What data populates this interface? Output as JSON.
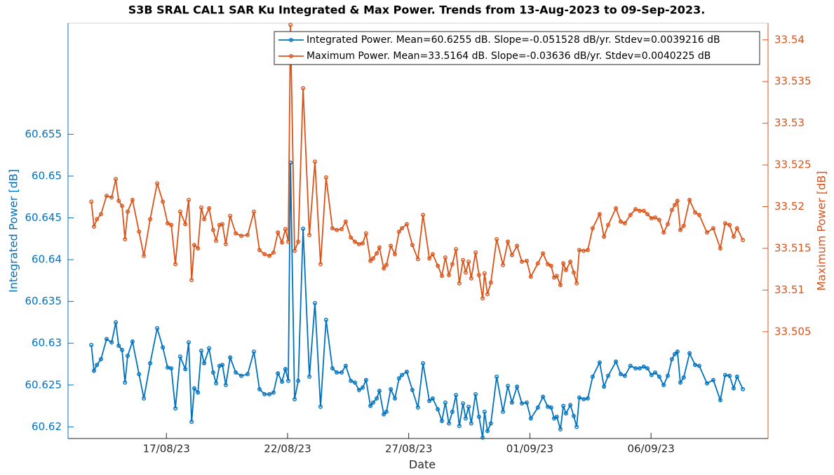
{
  "chart_data": {
    "type": "line",
    "title": "S3B SRAL CAL1 SAR Ku Integrated & Max Power. Trends from 13-Aug-2023 to 09-Sep-2023.",
    "x_label": "Date",
    "y_label": "Integrated Power [dB]",
    "y2_label": "Maximum Power [dB]",
    "xlim": [
      -0.06,
      28.83
    ],
    "xticks": [
      {
        "value": 4,
        "label": "17/08/23"
      },
      {
        "value": 9,
        "label": "22/08/23"
      },
      {
        "value": 14,
        "label": "27/08/23"
      },
      {
        "value": 19,
        "label": "01/09/23"
      },
      {
        "value": 24,
        "label": "06/09/23"
      }
    ],
    "ylim": [
      60.6186,
      60.6683
    ],
    "yticks": [
      60.62,
      60.625,
      60.63,
      60.635,
      60.64,
      60.645,
      60.65,
      60.655
    ],
    "y2lim": [
      33.4922,
      33.542
    ],
    "y2ticks": [
      33.505,
      33.51,
      33.515,
      33.52,
      33.525,
      33.53,
      33.535,
      33.54
    ],
    "legend": "upper right",
    "x": [
      0.9,
      1.01,
      1.13,
      1.3,
      1.53,
      1.74,
      1.91,
      2.03,
      2.17,
      2.29,
      2.4,
      2.6,
      2.87,
      3.07,
      3.33,
      3.62,
      3.85,
      4.05,
      4.2,
      4.37,
      4.57,
      4.78,
      4.92,
      5.04,
      5.15,
      5.3,
      5.44,
      5.56,
      5.76,
      5.93,
      6.05,
      6.19,
      6.31,
      6.45,
      6.63,
      6.86,
      7.09,
      7.35,
      7.61,
      7.84,
      8.05,
      8.25,
      8.42,
      8.6,
      8.77,
      8.91,
      9.03,
      9.12,
      9.29,
      9.44,
      9.64,
      9.9,
      10.13,
      10.36,
      10.59,
      10.85,
      11.03,
      11.23,
      11.4,
      11.61,
      11.78,
      11.95,
      12.1,
      12.24,
      12.42,
      12.53,
      12.68,
      12.79,
      12.97,
      13.08,
      13.26,
      13.43,
      13.6,
      13.72,
      13.92,
      14.15,
      14.38,
      14.59,
      14.85,
      14.99,
      15.2,
      15.37,
      15.51,
      15.66,
      15.8,
      15.95,
      16.09,
      16.24,
      16.35,
      16.47,
      16.58,
      16.76,
      16.9,
      17.05,
      17.13,
      17.25,
      17.39,
      17.63,
      17.89,
      18.09,
      18.26,
      18.47,
      18.67,
      18.87,
      19.04,
      19.33,
      19.54,
      19.74,
      19.88,
      20.0,
      20.11,
      20.26,
      20.38,
      20.49,
      20.67,
      20.81,
      20.93,
      21.04,
      21.22,
      21.39,
      21.59,
      21.88,
      22.06,
      22.23,
      22.55,
      22.75,
      22.92,
      23.15,
      23.36,
      23.53,
      23.7,
      23.85,
      24.02,
      24.17,
      24.34,
      24.52,
      24.69,
      24.86,
      24.98,
      25.09,
      25.21,
      25.35,
      25.59,
      25.82,
      25.99,
      26.31,
      26.57,
      26.86,
      27.06,
      27.24,
      27.41,
      27.55,
      27.79
    ],
    "series": [
      {
        "name": "Integrated Power. Mean=60.6255 dB. Slope=-0.051528 dB/yr. Stdev=0.0039216 dB",
        "color": "#0072bd",
        "axis": "y",
        "values": [
          60.6298,
          60.6267,
          60.6274,
          60.6281,
          60.6305,
          60.6301,
          60.6325,
          60.6297,
          60.6292,
          60.6253,
          60.6285,
          60.6302,
          60.6263,
          60.6234,
          60.6276,
          60.6318,
          60.6295,
          60.6271,
          60.627,
          60.6222,
          60.6284,
          60.6269,
          60.6301,
          60.6206,
          60.6246,
          60.6241,
          60.6291,
          60.6276,
          60.6294,
          60.6265,
          60.6252,
          60.6273,
          60.6274,
          60.625,
          60.6283,
          60.6265,
          60.6261,
          60.6263,
          60.629,
          60.6245,
          60.6239,
          60.6239,
          60.6241,
          60.6264,
          60.6254,
          60.6269,
          60.6255,
          60.6516,
          60.6233,
          60.6255,
          60.6437,
          60.626,
          60.6348,
          60.6224,
          60.6328,
          60.627,
          60.6265,
          60.6265,
          60.6273,
          60.6255,
          60.6253,
          60.6244,
          60.6247,
          60.6256,
          60.6225,
          60.6229,
          60.6234,
          60.6243,
          60.6215,
          60.6218,
          60.6245,
          60.6234,
          60.6258,
          60.6262,
          60.6266,
          60.6244,
          60.6223,
          60.6276,
          60.6231,
          60.6234,
          60.6221,
          60.6207,
          60.6229,
          60.6204,
          60.6218,
          60.6238,
          60.6201,
          60.6228,
          60.621,
          60.6224,
          60.6204,
          60.6239,
          60.6212,
          60.6187,
          60.6218,
          60.6195,
          60.6204,
          60.626,
          60.6218,
          60.6249,
          60.6229,
          60.6248,
          60.6228,
          60.6229,
          60.621,
          60.6223,
          60.6236,
          60.6224,
          60.6223,
          60.621,
          60.6212,
          60.6197,
          60.6225,
          60.6216,
          60.6226,
          60.6213,
          60.62,
          60.6235,
          60.6233,
          60.6234,
          60.626,
          60.6277,
          60.6248,
          60.6261,
          60.6278,
          60.6263,
          60.6261,
          60.6273,
          60.627,
          60.627,
          60.6272,
          60.627,
          60.6262,
          60.6265,
          60.626,
          60.625,
          60.6261,
          60.6281,
          60.6287,
          60.629,
          60.6253,
          60.6259,
          60.6288,
          60.6274,
          60.6273,
          60.6252,
          60.6256,
          60.6232,
          60.6262,
          60.6261,
          60.6246,
          60.626,
          60.6245
        ]
      },
      {
        "name": "Maximum Power. Mean=33.5164 dB. Slope=-0.03636 dB/yr. Stdev=0.0040225 dB",
        "color": "#d95319",
        "axis": "y2",
        "values": [
          33.5206,
          33.5176,
          33.5185,
          33.5191,
          33.5213,
          33.5211,
          33.5233,
          33.5207,
          33.5201,
          33.5161,
          33.5194,
          33.5208,
          33.517,
          33.5141,
          33.5185,
          33.5228,
          33.5206,
          33.518,
          33.5178,
          33.5131,
          33.5194,
          33.5179,
          33.5208,
          33.5112,
          33.5154,
          33.515,
          33.5199,
          33.5185,
          33.5198,
          33.5172,
          33.5159,
          33.5178,
          33.5179,
          33.5155,
          33.5189,
          33.5168,
          33.5165,
          33.5166,
          33.5194,
          33.5148,
          33.5143,
          33.5141,
          33.5145,
          33.5169,
          33.5157,
          33.5173,
          33.5158,
          33.5418,
          33.5147,
          33.5158,
          33.5342,
          33.5166,
          33.5254,
          33.5131,
          33.5235,
          33.5174,
          33.5172,
          33.5173,
          33.5182,
          33.5163,
          33.5158,
          33.5155,
          33.5156,
          33.5168,
          33.5135,
          33.5138,
          33.5144,
          33.5151,
          33.5126,
          33.513,
          33.5153,
          33.5143,
          33.517,
          33.5174,
          33.5179,
          33.5154,
          33.5137,
          33.519,
          33.5138,
          33.5143,
          33.5129,
          33.5117,
          33.5139,
          33.5118,
          33.5131,
          33.5149,
          33.5108,
          33.5136,
          33.5121,
          33.5134,
          33.5114,
          33.5145,
          33.5118,
          33.509,
          33.512,
          33.5095,
          33.5109,
          33.5161,
          33.513,
          33.5158,
          33.5142,
          33.5153,
          33.5134,
          33.5135,
          33.5116,
          33.5132,
          33.5144,
          33.5131,
          33.5129,
          33.5115,
          33.5117,
          33.5106,
          33.5132,
          33.5124,
          33.5134,
          33.5121,
          33.5108,
          33.5148,
          33.5147,
          33.5148,
          33.5174,
          33.5191,
          33.5164,
          33.5178,
          33.5198,
          33.5182,
          33.518,
          33.519,
          33.5197,
          33.5195,
          33.5195,
          33.5191,
          33.5186,
          33.5187,
          33.5184,
          33.5169,
          33.5179,
          33.5196,
          33.5202,
          33.5207,
          33.5172,
          33.5177,
          33.5208,
          33.5193,
          33.519,
          33.5169,
          33.5174,
          33.515,
          33.518,
          33.5178,
          33.5164,
          33.5174,
          33.516
        ]
      }
    ]
  }
}
